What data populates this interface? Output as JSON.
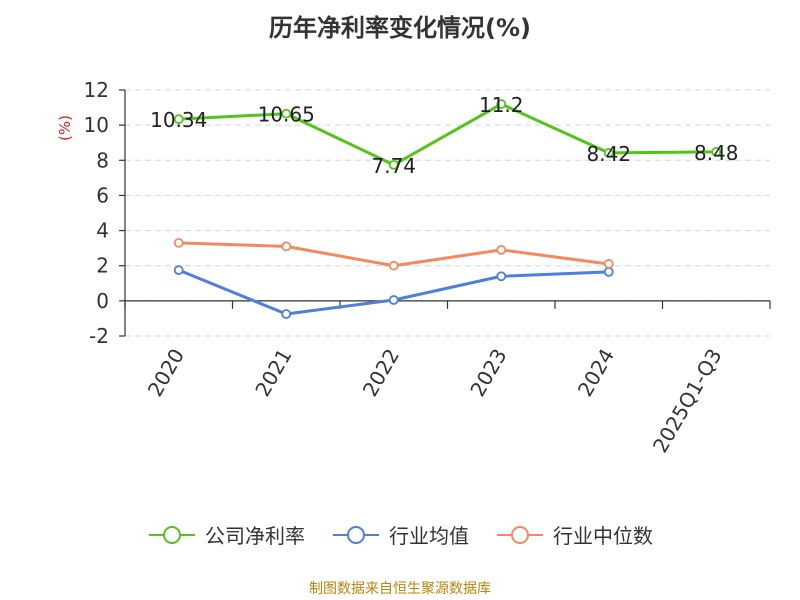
{
  "chart_data": {
    "type": "line",
    "title": "历年净利率变化情况(%)",
    "ylabel": "(%)",
    "categories": [
      "2020",
      "2021",
      "2022",
      "2023",
      "2024",
      "2025Q1-Q3"
    ],
    "ylim": [
      -2,
      12
    ],
    "yticks": [
      12,
      10,
      8,
      6,
      4,
      2,
      0,
      -2
    ],
    "grid": true,
    "legend_position": "bottom",
    "series": [
      {
        "name": "公司净利率",
        "color": "#52c41a",
        "values": [
          10.34,
          10.65,
          7.74,
          11.2,
          8.42,
          8.48
        ],
        "labels": [
          "10.34",
          "10.65",
          "7.74",
          "11.2",
          "8.42",
          "8.48"
        ]
      },
      {
        "name": "行业均值",
        "color": "#4e7fdc",
        "values": [
          1.75,
          -0.75,
          0.05,
          1.4,
          1.65,
          null
        ]
      },
      {
        "name": "行业中位数",
        "color": "#f4895f",
        "values": [
          3.3,
          3.1,
          2.0,
          2.9,
          2.1,
          null
        ]
      }
    ],
    "source": "制图数据来自恒生聚源数据库"
  }
}
